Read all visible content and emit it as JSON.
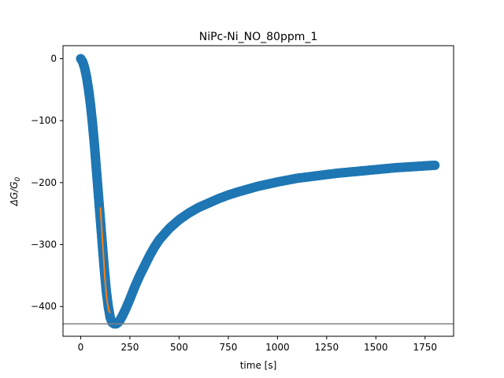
{
  "chart_data": {
    "type": "scatter",
    "title": "NiPc-Ni_NO_80ppm_1",
    "xlabel": "time [s]",
    "ylabel_main": "ΔG/G",
    "ylabel_sub": "0",
    "xlim": [
      -90,
      1895
    ],
    "ylim": [
      -448,
      21
    ],
    "xticks": [
      0,
      250,
      500,
      750,
      1000,
      1250,
      1500,
      1750
    ],
    "xtick_labels": [
      "0",
      "250",
      "500",
      "750",
      "1000",
      "1250",
      "1500",
      "1750"
    ],
    "yticks": [
      0,
      -100,
      -200,
      -300,
      -400
    ],
    "ytick_labels": [
      "0",
      "−100",
      "−200",
      "−300",
      "−400"
    ],
    "grid": false,
    "series": [
      {
        "kind": "scatter",
        "color": "#1f77b4",
        "x": [
          0,
          10,
          20,
          30,
          40,
          50,
          60,
          70,
          80,
          90,
          100,
          110,
          120,
          130,
          140,
          150,
          160,
          170,
          180,
          190,
          200,
          215,
          230,
          250,
          275,
          300,
          325,
          350,
          375,
          400,
          450,
          500,
          550,
          600,
          650,
          700,
          750,
          800,
          900,
          1000,
          1100,
          1200,
          1300,
          1400,
          1500,
          1600,
          1700,
          1800
        ],
        "y": [
          0,
          -5,
          -15,
          -30,
          -50,
          -75,
          -105,
          -140,
          -180,
          -220,
          -260,
          -300,
          -340,
          -375,
          -400,
          -418,
          -426,
          -428,
          -428,
          -426,
          -422,
          -413,
          -403,
          -388,
          -368,
          -350,
          -334,
          -318,
          -304,
          -292,
          -274,
          -260,
          -249,
          -240,
          -233,
          -226,
          -220,
          -215,
          -206,
          -199,
          -193,
          -189,
          -185,
          -182,
          -179,
          -176,
          -174,
          -172
        ]
      },
      {
        "kind": "line",
        "color": "#ff7f0e",
        "x": [
          100,
          105,
          110,
          115,
          120,
          125,
          130,
          135,
          140,
          145,
          150
        ],
        "y": [
          -240,
          -265,
          -290,
          -315,
          -340,
          -362,
          -380,
          -393,
          -402,
          -408,
          -410
        ]
      }
    ],
    "hline": {
      "y": -428,
      "color": "#808080"
    }
  }
}
